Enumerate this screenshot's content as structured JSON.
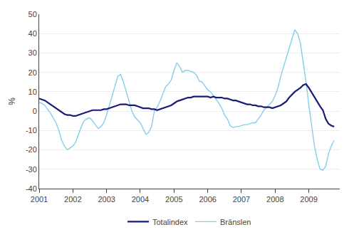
{
  "chart_data": {
    "type": "line",
    "ylabel": "%",
    "x": [
      2001.0,
      2001.0833333333,
      2001.1666666667,
      2001.25,
      2001.3333333333,
      2001.4166666667,
      2001.5,
      2001.5833333333,
      2001.6666666667,
      2001.75,
      2001.8333333333,
      2001.9166666667,
      2002.0,
      2002.0833333333,
      2002.1666666667,
      2002.25,
      2002.3333333333,
      2002.4166666667,
      2002.5,
      2002.5833333333,
      2002.6666666667,
      2002.75,
      2002.8333333333,
      2002.9166666667,
      2003.0,
      2003.0833333333,
      2003.1666666667,
      2003.25,
      2003.3333333333,
      2003.4166666667,
      2003.5,
      2003.5833333333,
      2003.6666666667,
      2003.75,
      2003.8333333333,
      2003.9166666667,
      2004.0,
      2004.0833333333,
      2004.1666666667,
      2004.25,
      2004.3333333333,
      2004.4166666667,
      2004.5,
      2004.5833333333,
      2004.6666666667,
      2004.75,
      2004.8333333333,
      2004.9166666667,
      2005.0,
      2005.0833333333,
      2005.1666666667,
      2005.25,
      2005.3333333333,
      2005.4166666667,
      2005.5,
      2005.5833333333,
      2005.6666666667,
      2005.75,
      2005.8333333333,
      2005.9166666667,
      2006.0,
      2006.0833333333,
      2006.1666666667,
      2006.25,
      2006.3333333333,
      2006.4166666667,
      2006.5,
      2006.5833333333,
      2006.6666666667,
      2006.75,
      2006.8333333333,
      2006.9166666667,
      2007.0,
      2007.0833333333,
      2007.1666666667,
      2007.25,
      2007.3333333333,
      2007.4166666667,
      2007.5,
      2007.5833333333,
      2007.6666666667,
      2007.75,
      2007.8333333333,
      2007.9166666667,
      2008.0,
      2008.0833333333,
      2008.1666666667,
      2008.25,
      2008.3333333333,
      2008.4166666667,
      2008.5,
      2008.5833333333,
      2008.6666666667,
      2008.75,
      2008.8333333333,
      2008.9166666667,
      2009.0,
      2009.0833333333,
      2009.1666666667,
      2009.25,
      2009.3333333333,
      2009.4166666667,
      2009.5,
      2009.5833333333,
      2009.6666666667,
      2009.75
    ],
    "series": [
      {
        "name": "Bränslen",
        "color": "#87ceeb",
        "values": [
          4.5,
          4.0,
          3.0,
          1.0,
          -1.0,
          -3.5,
          -6.0,
          -10.0,
          -15.0,
          -18.0,
          -20.0,
          -19.0,
          -18.0,
          -16.0,
          -12.0,
          -8.0,
          -5.0,
          -4.0,
          -3.5,
          -5.0,
          -7.0,
          -9.0,
          -8.0,
          -6.0,
          -2.0,
          3.0,
          8.0,
          13.0,
          18.0,
          19.0,
          15.0,
          10.0,
          5.0,
          0.0,
          -3.0,
          -4.5,
          -6.0,
          -9.0,
          -12.0,
          -11.0,
          -8.0,
          0.0,
          2.0,
          5.0,
          9.0,
          12.5,
          14.0,
          16.0,
          21.0,
          25.0,
          23.0,
          20.0,
          21.0,
          21.0,
          20.5,
          20.0,
          18.5,
          15.5,
          15.0,
          13.0,
          11.0,
          10.0,
          8.0,
          6.0,
          4.0,
          1.5,
          -2.0,
          -4.0,
          -7.5,
          -8.5,
          -8.0,
          -8.0,
          -7.5,
          -7.0,
          -7.0,
          -6.5,
          -6.0,
          -6.0,
          -4.0,
          -2.0,
          0.5,
          2.0,
          3.5,
          5.0,
          8.0,
          12.0,
          18.0,
          23.0,
          27.5,
          33.0,
          38.0,
          42.0,
          40.0,
          35.0,
          25.0,
          15.0,
          3.0,
          -8.0,
          -18.0,
          -25.0,
          -30.0,
          -30.5,
          -28.5,
          -22.0,
          -18.0,
          -15.0
        ]
      },
      {
        "name": "Totalindex",
        "color": "#1a1a7a",
        "values": [
          6.5,
          6.0,
          5.5,
          4.5,
          3.5,
          2.5,
          1.5,
          0.5,
          -0.5,
          -1.5,
          -2.0,
          -2.0,
          -2.5,
          -2.5,
          -2.0,
          -1.5,
          -1.0,
          -0.5,
          0.0,
          0.5,
          0.5,
          0.5,
          0.5,
          1.0,
          1.0,
          1.5,
          2.0,
          2.5,
          3.0,
          3.5,
          3.5,
          3.5,
          3.0,
          3.0,
          3.0,
          2.5,
          2.0,
          1.5,
          1.5,
          1.5,
          1.0,
          1.0,
          0.5,
          1.0,
          1.5,
          2.0,
          2.5,
          3.0,
          4.0,
          5.0,
          5.5,
          6.0,
          6.5,
          7.0,
          7.0,
          7.5,
          7.5,
          7.5,
          7.5,
          7.5,
          7.5,
          7.0,
          7.5,
          7.0,
          7.0,
          7.0,
          6.5,
          6.5,
          6.0,
          5.5,
          5.5,
          5.0,
          4.5,
          4.0,
          3.5,
          3.5,
          3.0,
          3.0,
          2.5,
          2.5,
          2.0,
          2.0,
          2.0,
          1.5,
          2.0,
          2.5,
          3.0,
          4.0,
          5.0,
          7.0,
          8.5,
          10.0,
          11.0,
          12.0,
          13.5,
          14.0,
          12.0,
          9.5,
          7.5,
          5.0,
          2.5,
          0.5,
          -4.0,
          -6.5,
          -7.5,
          -8.0
        ]
      }
    ],
    "xlim": [
      2001.0,
      2009.917
    ],
    "xticks": [
      2001,
      2002,
      2003,
      2004,
      2005,
      2006,
      2007,
      2008,
      2009
    ],
    "ylim": [
      -40,
      50
    ],
    "yticks": [
      -40,
      -30,
      -20,
      -10,
      0,
      10,
      20,
      30,
      40,
      50
    ],
    "grid": "y",
    "legend": "bottom"
  }
}
